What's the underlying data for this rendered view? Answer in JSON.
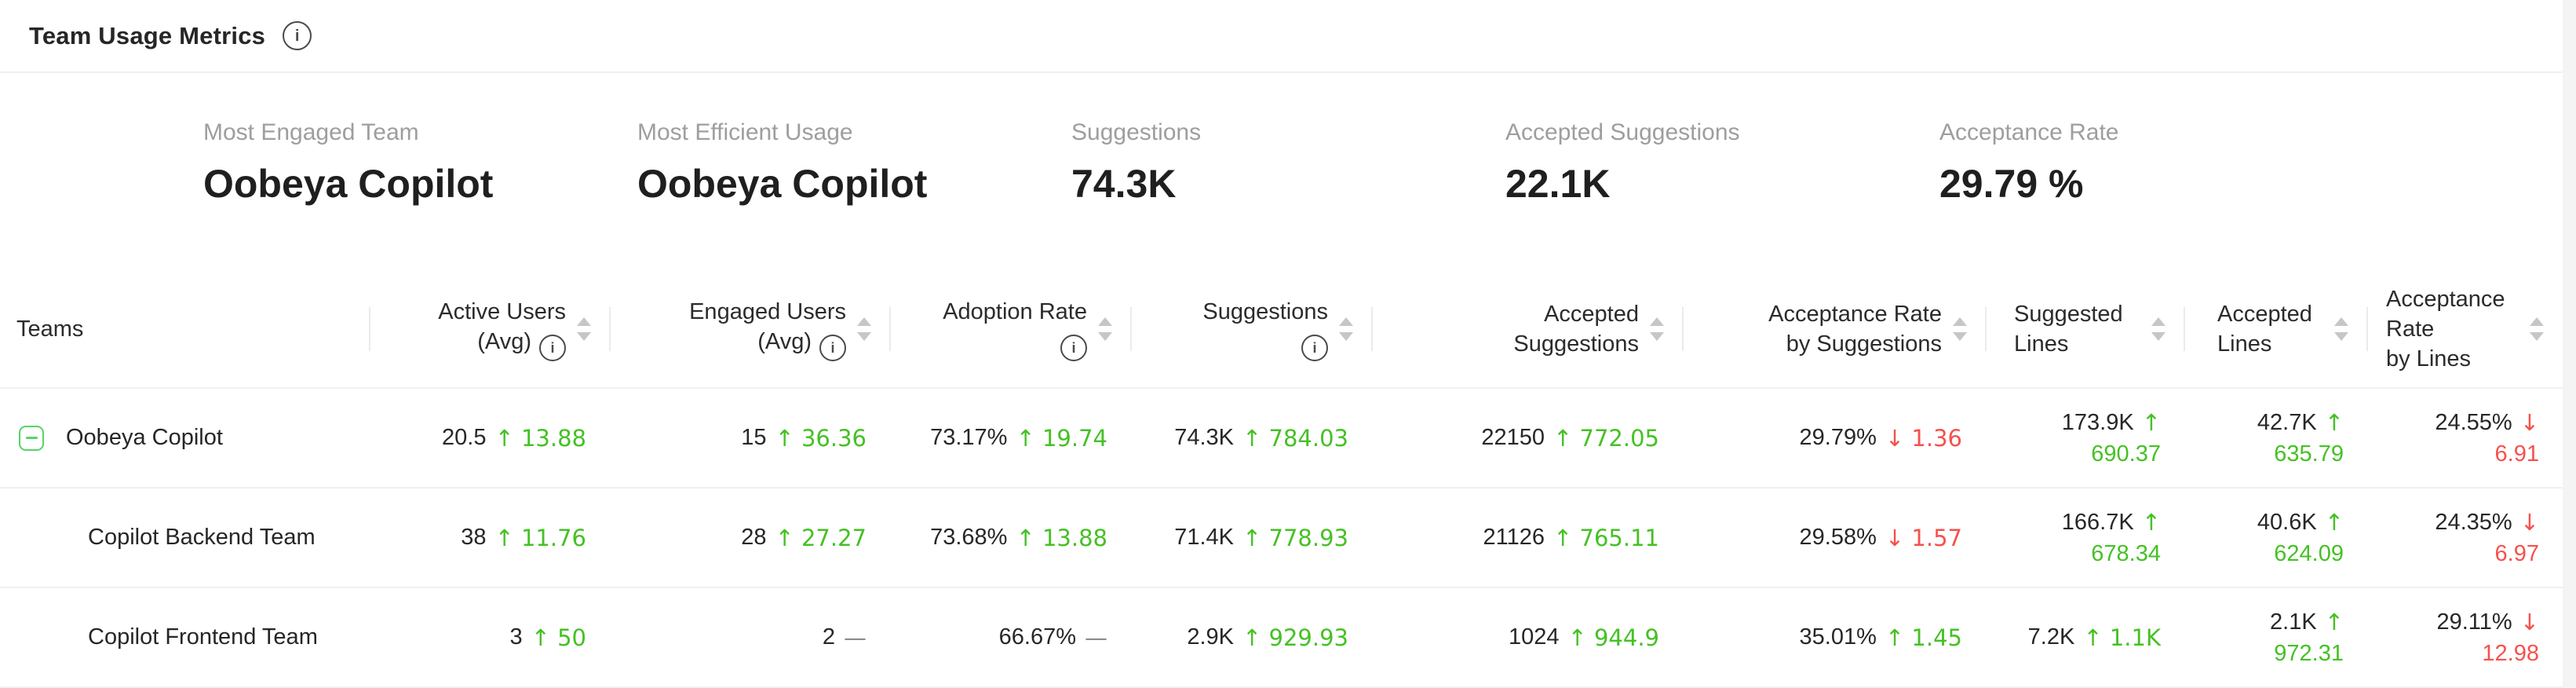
{
  "page": {
    "title": "Team Usage Metrics",
    "title_info_icon": "info-icon"
  },
  "summary": [
    {
      "id": "most-engaged-team",
      "label": "Most Engaged Team",
      "value": "Oobeya Copilot"
    },
    {
      "id": "most-efficient-usage",
      "label": "Most Efficient Usage",
      "value": "Oobeya Copilot"
    },
    {
      "id": "suggestions",
      "label": "Suggestions",
      "value": "74.3K"
    },
    {
      "id": "accepted-suggestions",
      "label": "Accepted Suggestions",
      "value": "22.1K"
    },
    {
      "id": "acceptance-rate",
      "label": "Acceptance Rate",
      "value": "29.79 %"
    }
  ],
  "table": {
    "columns": [
      {
        "id": "teams",
        "label_lines": [
          {
            "text": "Teams"
          }
        ],
        "sortable": false
      },
      {
        "id": "active-users-avg",
        "label_lines": [
          {
            "text": "Active Users"
          },
          {
            "text": "(Avg)",
            "info": true
          }
        ],
        "sortable": true
      },
      {
        "id": "engaged-users-avg",
        "label_lines": [
          {
            "text": "Engaged Users"
          },
          {
            "text": "(Avg)",
            "info": true
          }
        ],
        "sortable": true
      },
      {
        "id": "adoption-rate",
        "label_lines": [
          {
            "text": "Adoption Rate"
          },
          {
            "text": "",
            "info": true
          }
        ],
        "sortable": true
      },
      {
        "id": "suggestions",
        "label_lines": [
          {
            "text": "Suggestions"
          },
          {
            "text": "",
            "info": true
          }
        ],
        "sortable": true
      },
      {
        "id": "accepted-suggestions",
        "label_lines": [
          {
            "text": "Accepted"
          },
          {
            "text": "Suggestions"
          }
        ],
        "sortable": true
      },
      {
        "id": "acceptance-rate-by-suggestions",
        "label_lines": [
          {
            "text": "Acceptance Rate"
          },
          {
            "text": "by Suggestions"
          }
        ],
        "sortable": true
      },
      {
        "id": "suggested-lines",
        "label_lines": [
          {
            "text": "Suggested"
          },
          {
            "text": "Lines"
          }
        ],
        "sortable": true
      },
      {
        "id": "accepted-lines",
        "label_lines": [
          {
            "text": "Accepted"
          },
          {
            "text": "Lines"
          }
        ],
        "sortable": true
      },
      {
        "id": "acceptance-rate-by-lines",
        "label_lines": [
          {
            "text": "Acceptance"
          },
          {
            "text": "Rate"
          },
          {
            "text": "by Lines"
          }
        ],
        "sortable": true
      }
    ],
    "rows": [
      {
        "team": "Oobeya Copilot",
        "level": 0,
        "expandable": true,
        "expanded": true,
        "cells": [
          {
            "value": "20.5",
            "dir": "up",
            "delta": "13.88"
          },
          {
            "value": "15",
            "dir": "up",
            "delta": "36.36"
          },
          {
            "value": "73.17%",
            "dir": "up",
            "delta": "19.74"
          },
          {
            "value": "74.3K",
            "dir": "up",
            "delta": "784.03"
          },
          {
            "value": "22150",
            "dir": "up",
            "delta": "772.05"
          },
          {
            "value": "29.79%",
            "dir": "down",
            "delta": "1.36"
          },
          {
            "value": "173.9K",
            "dir": "up",
            "delta": "690.37",
            "wrap": true
          },
          {
            "value": "42.7K",
            "dir": "up",
            "delta": "635.79",
            "wrap": true
          },
          {
            "value": "24.55%",
            "dir": "down",
            "delta": "6.91",
            "wrap": true
          }
        ]
      },
      {
        "team": "Copilot Backend Team",
        "level": 1,
        "expandable": false,
        "cells": [
          {
            "value": "38",
            "dir": "up",
            "delta": "11.76"
          },
          {
            "value": "28",
            "dir": "up",
            "delta": "27.27"
          },
          {
            "value": "73.68%",
            "dir": "up",
            "delta": "13.88"
          },
          {
            "value": "71.4K",
            "dir": "up",
            "delta": "778.93"
          },
          {
            "value": "21126",
            "dir": "up",
            "delta": "765.11"
          },
          {
            "value": "29.58%",
            "dir": "down",
            "delta": "1.57"
          },
          {
            "value": "166.7K",
            "dir": "up",
            "delta": "678.34",
            "wrap": true
          },
          {
            "value": "40.6K",
            "dir": "up",
            "delta": "624.09",
            "wrap": true
          },
          {
            "value": "24.35%",
            "dir": "down",
            "delta": "6.97",
            "wrap": true
          }
        ]
      },
      {
        "team": "Copilot Frontend Team",
        "level": 1,
        "expandable": false,
        "cells": [
          {
            "value": "3",
            "dir": "up",
            "delta": "50"
          },
          {
            "value": "2",
            "dir": "flat",
            "delta": ""
          },
          {
            "value": "66.67%",
            "dir": "flat",
            "delta": ""
          },
          {
            "value": "2.9K",
            "dir": "up",
            "delta": "929.93"
          },
          {
            "value": "1024",
            "dir": "up",
            "delta": "944.9"
          },
          {
            "value": "35.01%",
            "dir": "up",
            "delta": "1.45"
          },
          {
            "value": "7.2K",
            "dir": "up",
            "delta": "1.1K"
          },
          {
            "value": "2.1K",
            "dir": "up",
            "delta": "972.31",
            "wrap": true
          },
          {
            "value": "29.11%",
            "dir": "down",
            "delta": "12.98",
            "wrap": true
          }
        ]
      }
    ]
  },
  "colors": {
    "positive": "#45c124",
    "negative": "#f5514d",
    "neutral": "#8c8c8c",
    "expand_toggle_green": "#56d36a",
    "label_gray": "#9e9e9e",
    "divider": "#f0f0f0"
  },
  "glyphs": {
    "up_arrow": "↑",
    "down_arrow": "↓",
    "no_change_dash": "—"
  }
}
